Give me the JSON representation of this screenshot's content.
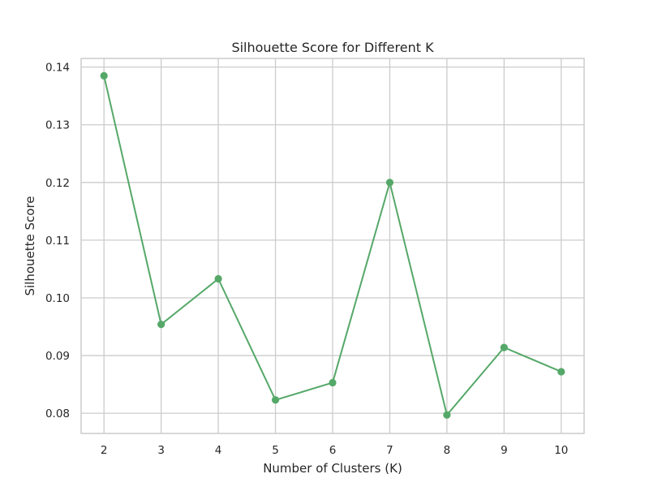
{
  "chart_data": {
    "type": "line",
    "title": "Silhouette Score for Different K",
    "xlabel": "Number of Clusters (K)",
    "ylabel": "Silhouette Score",
    "x": [
      2,
      3,
      4,
      5,
      6,
      7,
      8,
      9,
      10
    ],
    "series": [
      {
        "values": [
          0.1385,
          0.0954,
          0.1033,
          0.0823,
          0.0853,
          0.12,
          0.0797,
          0.0914,
          0.0872
        ],
        "color": "#55a868",
        "marker": "circle"
      }
    ],
    "xticks": [
      "2",
      "3",
      "4",
      "5",
      "6",
      "7",
      "8",
      "9",
      "10"
    ],
    "yticks": [
      "0.08",
      "0.09",
      "0.10",
      "0.11",
      "0.12",
      "0.13",
      "0.14"
    ],
    "ytick_values": [
      0.08,
      0.09,
      0.1,
      0.11,
      0.12,
      0.13,
      0.14
    ],
    "xlim": [
      1.6,
      10.4
    ],
    "ylim": [
      0.0765,
      0.1415
    ],
    "grid": true,
    "grid_color": "#cccccc",
    "spine_color": "#cccccc",
    "text_color": "#262626"
  }
}
